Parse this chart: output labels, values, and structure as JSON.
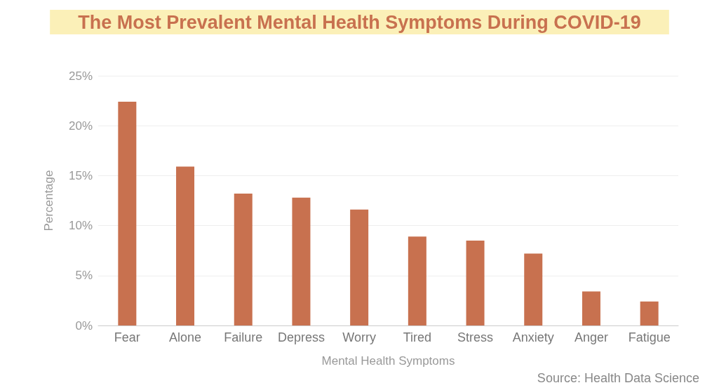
{
  "chart_data": {
    "type": "bar",
    "title": "The Most Prevalent Mental Health Symptoms During COVID-19",
    "categories": [
      "Fear",
      "Alone",
      "Failure",
      "Depress",
      "Worry",
      "Tired",
      "Stress",
      "Anxiety",
      "Anger",
      "Fatigue"
    ],
    "values": [
      22.4,
      15.9,
      13.2,
      12.8,
      11.6,
      8.9,
      8.5,
      7.2,
      3.4,
      2.4
    ],
    "color": "#c8714f",
    "xlabel": "Mental Health Symptoms",
    "ylabel": "Percentage",
    "ylim": [
      0,
      25
    ],
    "yticks": [
      {
        "value": 0,
        "label": "0%"
      },
      {
        "value": 5,
        "label": "5%"
      },
      {
        "value": 10,
        "label": "10%"
      },
      {
        "value": 15,
        "label": "15%"
      },
      {
        "value": 20,
        "label": "20%"
      },
      {
        "value": 25,
        "label": "25%"
      }
    ],
    "grid": "y",
    "annotations": [
      "Source: Health Data Science"
    ]
  }
}
